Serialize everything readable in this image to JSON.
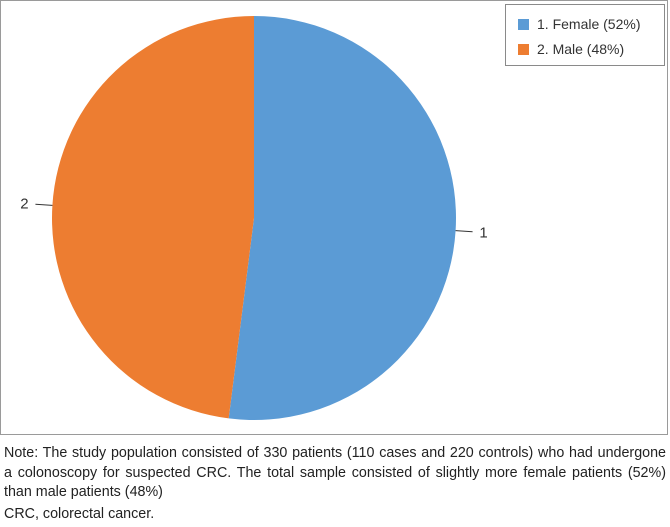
{
  "chart_data": {
    "type": "pie",
    "slices": [
      {
        "id": "1",
        "label": "1",
        "legend": "1. Female (52%)",
        "value": 52,
        "color": "#5B9BD5"
      },
      {
        "id": "2",
        "label": "2",
        "legend": "2. Male (48%)",
        "value": 48,
        "color": "#ED7D31"
      }
    ],
    "start": "top",
    "direction": "clockwise",
    "legend_position": "top-right"
  },
  "note": {
    "text": "Note: The study population consisted of 330 patients (110 cases and 220 controls) who had undergone a colonoscopy for suspected CRC. The total sample consisted of slightly more female patients (52%) than male patients (48%)",
    "abbreviation": "CRC, colorectal cancer."
  }
}
